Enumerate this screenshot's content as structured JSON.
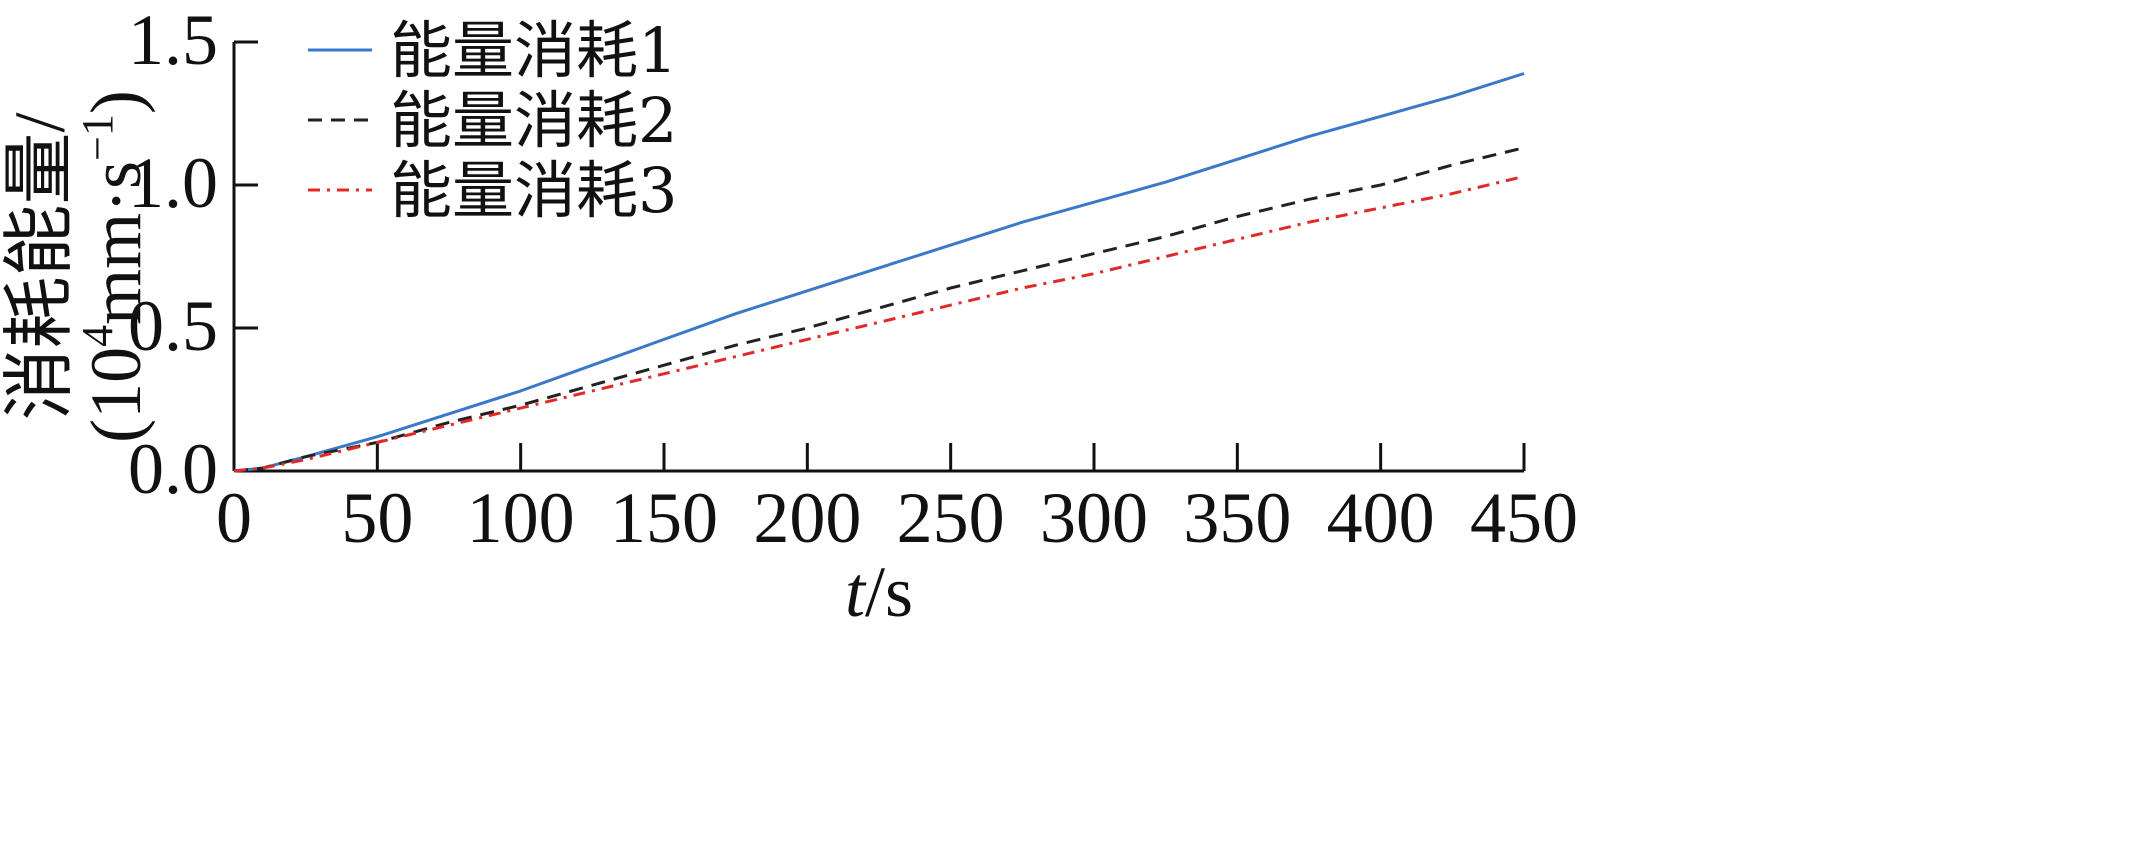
{
  "chart_data": {
    "type": "line",
    "title": "",
    "xlabel": {
      "var": "t",
      "unit": "/s"
    },
    "ylabel": {
      "line1": "消耗能量/",
      "line2_prefix": "(10",
      "line2_sup": "4",
      "line2_mid": "mm·s",
      "line2_sup2": "−1",
      "line2_suffix": ")"
    },
    "xlim": [
      0,
      450
    ],
    "ylim": [
      0,
      1.5
    ],
    "xticks": [
      0,
      50,
      100,
      150,
      200,
      250,
      300,
      350,
      400,
      450
    ],
    "xtick_labels": [
      "0",
      "50",
      "100",
      "150",
      "200",
      "250",
      "300",
      "350",
      "400",
      "450"
    ],
    "yticks": [
      0.0,
      0.5,
      1.0,
      1.5
    ],
    "ytick_labels": [
      "0.0",
      "0.5",
      "1.0",
      "1.5"
    ],
    "grid": false,
    "legend_position": "top-left",
    "series": [
      {
        "name": "能量消耗1",
        "color": "#3a78c9",
        "style": "solid",
        "x": [
          0,
          10,
          25,
          50,
          75,
          100,
          125,
          150,
          175,
          200,
          225,
          250,
          275,
          300,
          325,
          350,
          375,
          400,
          425,
          450
        ],
        "y": [
          0.0,
          0.01,
          0.05,
          0.12,
          0.2,
          0.28,
          0.37,
          0.46,
          0.55,
          0.63,
          0.71,
          0.79,
          0.87,
          0.94,
          1.01,
          1.09,
          1.17,
          1.24,
          1.31,
          1.39
        ]
      },
      {
        "name": "能量消耗2",
        "color": "#222222",
        "style": "dashed",
        "x": [
          0,
          10,
          25,
          50,
          75,
          100,
          125,
          150,
          175,
          200,
          225,
          250,
          275,
          300,
          325,
          350,
          375,
          400,
          425,
          450
        ],
        "y": [
          0.0,
          0.01,
          0.05,
          0.1,
          0.17,
          0.23,
          0.3,
          0.37,
          0.44,
          0.5,
          0.57,
          0.64,
          0.7,
          0.76,
          0.82,
          0.89,
          0.95,
          1.0,
          1.07,
          1.13
        ]
      },
      {
        "name": "能量消耗3",
        "color": "#e02a2a",
        "style": "dashdot",
        "x": [
          0,
          10,
          25,
          50,
          75,
          100,
          125,
          150,
          175,
          200,
          225,
          250,
          275,
          300,
          325,
          350,
          375,
          400,
          425,
          450
        ],
        "y": [
          0.0,
          0.01,
          0.04,
          0.1,
          0.16,
          0.22,
          0.28,
          0.34,
          0.4,
          0.46,
          0.52,
          0.58,
          0.64,
          0.69,
          0.75,
          0.81,
          0.87,
          0.92,
          0.97,
          1.03
        ]
      }
    ]
  }
}
